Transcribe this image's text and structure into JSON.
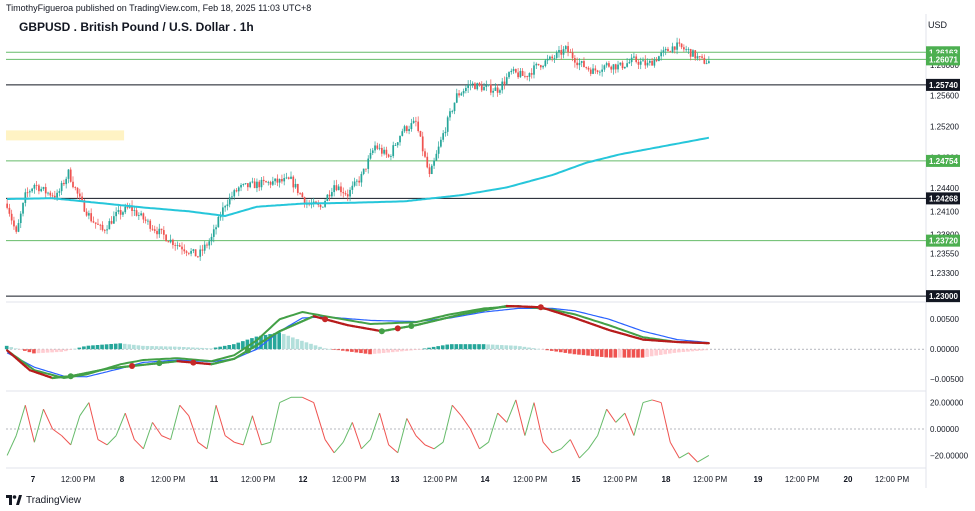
{
  "header": {
    "published_by": "TimothyFigueroa published on TradingView.com, Feb 18, 2025 11:03 UTC+8",
    "title": "GBPUSD . British Pound / U.S. Dollar . 1h",
    "currency": "USD"
  },
  "footer": {
    "brand": "TradingView"
  },
  "colors": {
    "up_candle": "#26a69a",
    "down_candle": "#ef5350",
    "ma_line": "#26c6da",
    "hline_green": "#66bb6a",
    "hline_black": "#131722",
    "highlight_zone": "#fff3c4",
    "macd_fast": "#43a047",
    "macd_slow": "#2962ff",
    "macd_signal_down": "#b71c1c",
    "hist_pos_strong": "#26a69a",
    "hist_pos_weak": "#b2dfdb",
    "hist_neg_strong": "#ef5350",
    "hist_neg_weak": "#ffcdd2",
    "osc_up": "#66bb6a",
    "osc_down": "#ef5350"
  },
  "chart_data": [
    {
      "type": "candlestick",
      "panel": "price",
      "price_axis_labels": [
        "1.26000",
        "1.25600",
        "1.25200",
        "1.24800",
        "1.24400",
        "1.24100",
        "1.23800",
        "1.23550",
        "1.23300",
        "1.23000"
      ],
      "x_tick_labels": [
        "7",
        "12:00 PM",
        "8",
        "12:00 PM",
        "11",
        "12:00 PM",
        "12",
        "12:00 PM",
        "13",
        "12:00 PM",
        "14",
        "12:00 PM",
        "15",
        "12:00 PM",
        "18",
        "12:00 PM",
        "19",
        "12:00 PM",
        "20",
        "12:00 PM"
      ],
      "ylim": [
        1.2295,
        1.264
      ],
      "horizontal_levels": [
        {
          "price": 1.26163,
          "label": "1.26163",
          "style": "green"
        },
        {
          "price": 1.26071,
          "label": "1.26071",
          "style": "green"
        },
        {
          "price": 1.2574,
          "label": "1.25740",
          "style": "black"
        },
        {
          "price": 1.24754,
          "label": "1.24754",
          "style": "green"
        },
        {
          "price": 1.24268,
          "label": "1.24268",
          "style": "black"
        },
        {
          "price": 1.2372,
          "label": "1.23720",
          "style": "green"
        },
        {
          "price": 1.23,
          "label": "1.23000",
          "style": "black"
        }
      ],
      "highlight_zone": {
        "price_top": 1.2515,
        "price_bottom": 1.2502,
        "start_bar": 0,
        "end_bar": 52
      },
      "moving_average_anchors": [
        [
          0,
          1.2426
        ],
        [
          20,
          1.2427
        ],
        [
          40,
          1.2421
        ],
        [
          60,
          1.2415
        ],
        [
          80,
          1.241
        ],
        [
          96,
          1.2404
        ],
        [
          110,
          1.2416
        ],
        [
          130,
          1.242
        ],
        [
          150,
          1.2421
        ],
        [
          175,
          1.2423
        ],
        [
          200,
          1.2431
        ],
        [
          220,
          1.2441
        ],
        [
          240,
          1.2457
        ],
        [
          255,
          1.2473
        ],
        [
          270,
          1.2484
        ],
        [
          290,
          1.2495
        ],
        [
          310,
          1.2506
        ]
      ],
      "close_anchors": [
        [
          0,
          1.242
        ],
        [
          4,
          1.238
        ],
        [
          8,
          1.243
        ],
        [
          12,
          1.2445
        ],
        [
          17,
          1.2435
        ],
        [
          22,
          1.243
        ],
        [
          27,
          1.246
        ],
        [
          32,
          1.2425
        ],
        [
          37,
          1.24
        ],
        [
          42,
          1.2385
        ],
        [
          48,
          1.2405
        ],
        [
          54,
          1.2415
        ],
        [
          60,
          1.24
        ],
        [
          66,
          1.2385
        ],
        [
          72,
          1.2372
        ],
        [
          78,
          1.2362
        ],
        [
          84,
          1.2352
        ],
        [
          90,
          1.2375
        ],
        [
          96,
          1.242
        ],
        [
          102,
          1.244
        ],
        [
          110,
          1.2445
        ],
        [
          118,
          1.2448
        ],
        [
          125,
          1.245
        ],
        [
          132,
          1.242
        ],
        [
          138,
          1.2415
        ],
        [
          144,
          1.2445
        ],
        [
          150,
          1.2432
        ],
        [
          156,
          1.2455
        ],
        [
          162,
          1.2495
        ],
        [
          168,
          1.248
        ],
        [
          174,
          1.2515
        ],
        [
          180,
          1.2525
        ],
        [
          186,
          1.2455
        ],
        [
          192,
          1.251
        ],
        [
          198,
          1.256
        ],
        [
          204,
          1.2575
        ],
        [
          210,
          1.257
        ],
        [
          216,
          1.2568
        ],
        [
          222,
          1.259
        ],
        [
          228,
          1.2585
        ],
        [
          234,
          1.26
        ],
        [
          240,
          1.2608
        ],
        [
          246,
          1.262
        ],
        [
          252,
          1.2602
        ],
        [
          258,
          1.2592
        ],
        [
          264,
          1.26
        ],
        [
          270,
          1.2598
        ],
        [
          276,
          1.2606
        ],
        [
          282,
          1.26
        ],
        [
          288,
          1.2613
        ],
        [
          294,
          1.2625
        ],
        [
          300,
          1.2618
        ],
        [
          306,
          1.2605
        ],
        [
          309,
          1.2604
        ]
      ],
      "bar_count": 310
    },
    {
      "type": "line",
      "panel": "macd",
      "y_tick_labels": [
        "0.00500",
        "0.00000",
        "−0.00500"
      ],
      "ylim": [
        -0.0068,
        0.0072
      ],
      "series": [
        {
          "role": "fast",
          "anchors": [
            [
              0,
              -0.0002
            ],
            [
              12,
              -0.0035
            ],
            [
              25,
              -0.0048
            ],
            [
              35,
              -0.0042
            ],
            [
              50,
              -0.0025
            ],
            [
              60,
              -0.0018
            ],
            [
              75,
              -0.0015
            ],
            [
              90,
              -0.002
            ],
            [
              100,
              -0.001
            ],
            [
              110,
              0.0015
            ],
            [
              120,
              0.005
            ],
            [
              130,
              0.0062
            ],
            [
              140,
              0.0055
            ],
            [
              160,
              0.0042
            ],
            [
              180,
              0.0045
            ],
            [
              195,
              0.0058
            ],
            [
              210,
              0.0068
            ],
            [
              225,
              0.0072
            ],
            [
              240,
              0.0066
            ],
            [
              250,
              0.0058
            ],
            [
              265,
              0.004
            ],
            [
              280,
              0.002
            ],
            [
              295,
              0.0012
            ],
            [
              309,
              0.001
            ]
          ]
        },
        {
          "role": "slow",
          "anchors": [
            [
              0,
              -0.0006
            ],
            [
              12,
              -0.003
            ],
            [
              25,
              -0.0045
            ],
            [
              35,
              -0.0046
            ],
            [
              50,
              -0.0032
            ],
            [
              60,
              -0.0022
            ],
            [
              75,
              -0.0018
            ],
            [
              90,
              -0.0021
            ],
            [
              100,
              -0.0016
            ],
            [
              110,
              0.0
            ],
            [
              120,
              0.003
            ],
            [
              130,
              0.0052
            ],
            [
              140,
              0.0054
            ],
            [
              160,
              0.0048
            ],
            [
              180,
              0.0046
            ],
            [
              195,
              0.0052
            ],
            [
              210,
              0.0062
            ],
            [
              225,
              0.0068
            ],
            [
              240,
              0.0068
            ],
            [
              250,
              0.0064
            ],
            [
              265,
              0.005
            ],
            [
              280,
              0.003
            ],
            [
              295,
              0.0016
            ],
            [
              309,
              0.0011
            ]
          ]
        },
        {
          "role": "signal",
          "anchors": [
            [
              0,
              -0.0002
            ],
            [
              10,
              -0.0035
            ],
            [
              20,
              -0.0048
            ],
            [
              28,
              -0.0045
            ],
            [
              45,
              -0.0032
            ],
            [
              55,
              -0.0028
            ],
            [
              75,
              -0.002
            ],
            [
              90,
              -0.0025
            ],
            [
              100,
              -0.0016
            ],
            [
              120,
              0.003
            ],
            [
              135,
              0.0055
            ],
            [
              150,
              0.004
            ],
            [
              165,
              0.003
            ],
            [
              180,
              0.004
            ],
            [
              200,
              0.0058
            ],
            [
              220,
              0.0072
            ],
            [
              235,
              0.007
            ],
            [
              250,
              0.0052
            ],
            [
              265,
              0.0032
            ],
            [
              280,
              0.0016
            ],
            [
              295,
              0.0012
            ],
            [
              309,
              0.001
            ]
          ]
        }
      ],
      "signal_markers": [
        {
          "bar": 28,
          "color": "green"
        },
        {
          "bar": 55,
          "color": "red"
        },
        {
          "bar": 67,
          "color": "green"
        },
        {
          "bar": 82,
          "color": "red"
        },
        {
          "bar": 106,
          "color": "green"
        },
        {
          "bar": 140,
          "color": "red"
        },
        {
          "bar": 165,
          "color": "green"
        },
        {
          "bar": 172,
          "color": "red"
        },
        {
          "bar": 178,
          "color": "green"
        },
        {
          "bar": 235,
          "color": "red"
        }
      ]
    },
    {
      "type": "line",
      "panel": "oscillator",
      "y_tick_labels": [
        "20.00000",
        "0.00000",
        "−20.00000"
      ],
      "ylim": [
        -28,
        28
      ],
      "anchors": [
        [
          0,
          -20
        ],
        [
          4,
          -5
        ],
        [
          8,
          18
        ],
        [
          12,
          -10
        ],
        [
          16,
          15
        ],
        [
          20,
          0
        ],
        [
          24,
          -5
        ],
        [
          28,
          -12
        ],
        [
          32,
          10
        ],
        [
          36,
          20
        ],
        [
          40,
          -8
        ],
        [
          44,
          -12
        ],
        [
          48,
          -5
        ],
        [
          52,
          12
        ],
        [
          56,
          -8
        ],
        [
          60,
          -15
        ],
        [
          64,
          5
        ],
        [
          68,
          -5
        ],
        [
          72,
          -8
        ],
        [
          76,
          18
        ],
        [
          80,
          10
        ],
        [
          84,
          -10
        ],
        [
          88,
          -15
        ],
        [
          92,
          18
        ],
        [
          96,
          -5
        ],
        [
          100,
          -10
        ],
        [
          104,
          -12
        ],
        [
          108,
          10
        ],
        [
          112,
          -12
        ],
        [
          116,
          -10
        ],
        [
          120,
          20
        ],
        [
          125,
          24
        ],
        [
          130,
          24
        ],
        [
          135,
          20
        ],
        [
          140,
          -8
        ],
        [
          144,
          -18
        ],
        [
          148,
          -10
        ],
        [
          152,
          5
        ],
        [
          156,
          -15
        ],
        [
          160,
          -8
        ],
        [
          164,
          12
        ],
        [
          168,
          -12
        ],
        [
          172,
          -18
        ],
        [
          176,
          8
        ],
        [
          180,
          -5
        ],
        [
          184,
          -12
        ],
        [
          188,
          -15
        ],
        [
          192,
          -10
        ],
        [
          196,
          18
        ],
        [
          200,
          10
        ],
        [
          204,
          0
        ],
        [
          208,
          -15
        ],
        [
          212,
          -10
        ],
        [
          216,
          12
        ],
        [
          220,
          5
        ],
        [
          224,
          22
        ],
        [
          228,
          -5
        ],
        [
          232,
          20
        ],
        [
          236,
          -10
        ],
        [
          240,
          -18
        ],
        [
          244,
          -15
        ],
        [
          248,
          -8
        ],
        [
          252,
          -22
        ],
        [
          256,
          -15
        ],
        [
          260,
          -5
        ],
        [
          264,
          15
        ],
        [
          268,
          5
        ],
        [
          272,
          12
        ],
        [
          276,
          -5
        ],
        [
          280,
          20
        ],
        [
          284,
          22
        ],
        [
          288,
          20
        ],
        [
          292,
          -10
        ],
        [
          296,
          -22
        ],
        [
          300,
          -18
        ],
        [
          304,
          -25
        ],
        [
          309,
          -20
        ]
      ]
    }
  ]
}
